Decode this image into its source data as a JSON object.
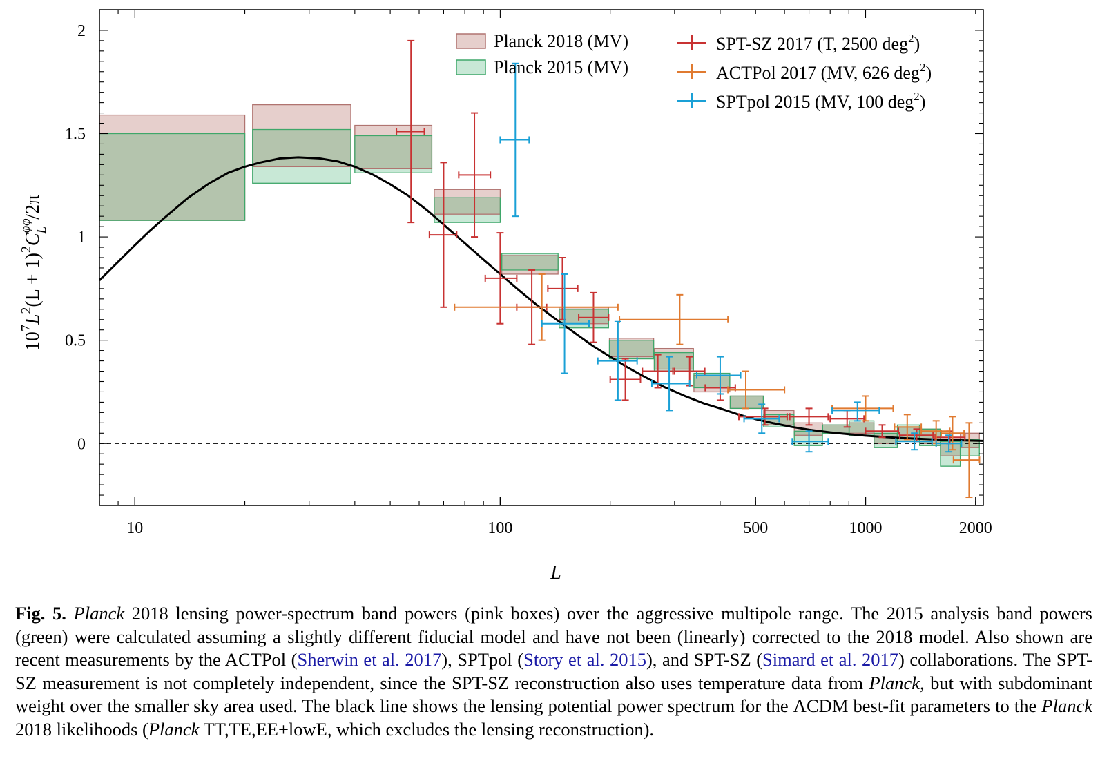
{
  "chart_data": {
    "type": "scatter",
    "xlabel": "L",
    "ylabel": "10^7 L^2(L+1)^2 C_L^{φφ} / 2π",
    "xscale": "log",
    "xlim": [
      8,
      2100
    ],
    "ylim": [
      -0.3,
      2.1
    ],
    "xticks": [
      {
        "value": 10,
        "label": "10"
      },
      {
        "value": 100,
        "label": "100"
      },
      {
        "value": 500,
        "label": "500"
      },
      {
        "value": 1000,
        "label": "1000"
      },
      {
        "value": 2000,
        "label": "2000"
      }
    ],
    "yticks": [
      {
        "value": 0,
        "label": "0"
      },
      {
        "value": 0.5,
        "label": "0.5"
      },
      {
        "value": 1,
        "label": "1"
      },
      {
        "value": 1.5,
        "label": "1.5"
      },
      {
        "value": 2,
        "label": "2"
      }
    ],
    "legend_position": "top-right",
    "grid": false,
    "zero_line": {
      "style": "dashed",
      "color": "#000000"
    },
    "colors": {
      "planck2018_fill": "#e6cfcc",
      "planck2018_edge": "#b07470",
      "planck2015_fill": "#c8e8d6",
      "planck2015_edge": "#3fa76a",
      "overlap_fill": "#b4c4ad",
      "sptsz": "#c83232",
      "actpol": "#e07a30",
      "sptpol": "#1aa0d6",
      "model": "#000000"
    },
    "series": [
      {
        "name": "Planck 2018 (MV)",
        "kind": "bandpower_boxes",
        "boxes": [
          {
            "l_min": 8,
            "l_max": 20,
            "low": 1.08,
            "high": 1.59
          },
          {
            "l_min": 21,
            "l_max": 39,
            "low": 1.34,
            "high": 1.64
          },
          {
            "l_min": 40,
            "l_max": 65,
            "low": 1.33,
            "high": 1.54
          },
          {
            "l_min": 66,
            "l_max": 100,
            "low": 1.11,
            "high": 1.23
          },
          {
            "l_min": 101,
            "l_max": 144,
            "low": 0.82,
            "high": 0.91
          },
          {
            "l_min": 145,
            "l_max": 198,
            "low": 0.58,
            "high": 0.66
          },
          {
            "l_min": 199,
            "l_max": 263,
            "low": 0.42,
            "high": 0.51
          },
          {
            "l_min": 264,
            "l_max": 338,
            "low": 0.36,
            "high": 0.46
          },
          {
            "l_min": 339,
            "l_max": 425,
            "low": 0.25,
            "high": 0.33
          },
          {
            "l_min": 426,
            "l_max": 525,
            "low": 0.17,
            "high": 0.23
          },
          {
            "l_min": 526,
            "l_max": 637,
            "low": 0.09,
            "high": 0.16
          },
          {
            "l_min": 638,
            "l_max": 762,
            "low": 0.04,
            "high": 0.1
          },
          {
            "l_min": 763,
            "l_max": 901,
            "low": 0.05,
            "high": 0.09
          },
          {
            "l_min": 902,
            "l_max": 1054,
            "low": 0.05,
            "high": 0.1
          },
          {
            "l_min": 1055,
            "l_max": 1221,
            "low": 0.0,
            "high": 0.05
          },
          {
            "l_min": 1222,
            "l_max": 1404,
            "low": 0.01,
            "high": 0.08
          },
          {
            "l_min": 1405,
            "l_max": 1602,
            "low": 0.0,
            "high": 0.07
          },
          {
            "l_min": 1603,
            "l_max": 1816,
            "low": -0.06,
            "high": 0.03
          },
          {
            "l_min": 1817,
            "l_max": 2048,
            "low": -0.02,
            "high": 0.05
          }
        ]
      },
      {
        "name": "Planck 2015 (MV)",
        "kind": "bandpower_boxes",
        "boxes": [
          {
            "l_min": 8,
            "l_max": 20,
            "low": 1.08,
            "high": 1.5
          },
          {
            "l_min": 21,
            "l_max": 39,
            "low": 1.26,
            "high": 1.52
          },
          {
            "l_min": 40,
            "l_max": 65,
            "low": 1.31,
            "high": 1.49
          },
          {
            "l_min": 66,
            "l_max": 100,
            "low": 1.07,
            "high": 1.19
          },
          {
            "l_min": 101,
            "l_max": 144,
            "low": 0.84,
            "high": 0.92
          },
          {
            "l_min": 145,
            "l_max": 198,
            "low": 0.56,
            "high": 0.65
          },
          {
            "l_min": 199,
            "l_max": 263,
            "low": 0.41,
            "high": 0.5
          },
          {
            "l_min": 264,
            "l_max": 338,
            "low": 0.35,
            "high": 0.44
          },
          {
            "l_min": 339,
            "l_max": 425,
            "low": 0.27,
            "high": 0.34
          },
          {
            "l_min": 426,
            "l_max": 525,
            "low": 0.17,
            "high": 0.23
          },
          {
            "l_min": 526,
            "l_max": 637,
            "low": 0.08,
            "high": 0.14
          },
          {
            "l_min": 638,
            "l_max": 762,
            "low": -0.01,
            "high": 0.06
          },
          {
            "l_min": 763,
            "l_max": 901,
            "low": 0.05,
            "high": 0.09
          },
          {
            "l_min": 902,
            "l_max": 1054,
            "low": 0.04,
            "high": 0.11
          },
          {
            "l_min": 1055,
            "l_max": 1221,
            "low": -0.02,
            "high": 0.05
          },
          {
            "l_min": 1222,
            "l_max": 1404,
            "low": 0.01,
            "high": 0.09
          },
          {
            "l_min": 1405,
            "l_max": 1602,
            "low": -0.01,
            "high": 0.07
          },
          {
            "l_min": 1603,
            "l_max": 1816,
            "low": -0.11,
            "high": 0.01
          },
          {
            "l_min": 1817,
            "l_max": 2048,
            "low": -0.06,
            "high": 0.02
          }
        ]
      },
      {
        "name": "SPT-SZ 2017 (T, 2500 deg²)",
        "kind": "errorbars",
        "points": [
          {
            "x": 57,
            "y": 1.51,
            "x_low": 52,
            "x_high": 62,
            "y_low": 1.07,
            "y_high": 1.95
          },
          {
            "x": 70,
            "y": 1.01,
            "x_low": 64,
            "x_high": 76,
            "y_low": 0.66,
            "y_high": 1.36
          },
          {
            "x": 85,
            "y": 1.3,
            "x_low": 77,
            "x_high": 94,
            "y_low": 1.0,
            "y_high": 1.6
          },
          {
            "x": 100,
            "y": 0.8,
            "x_low": 91,
            "x_high": 111,
            "y_low": 0.58,
            "y_high": 1.02
          },
          {
            "x": 122,
            "y": 0.66,
            "x_low": 111,
            "x_high": 134,
            "y_low": 0.48,
            "y_high": 0.84
          },
          {
            "x": 148,
            "y": 0.75,
            "x_low": 135,
            "x_high": 163,
            "y_low": 0.6,
            "y_high": 0.9
          },
          {
            "x": 180,
            "y": 0.61,
            "x_low": 164,
            "x_high": 198,
            "y_low": 0.49,
            "y_high": 0.73
          },
          {
            "x": 220,
            "y": 0.31,
            "x_low": 200,
            "x_high": 242,
            "y_low": 0.21,
            "y_high": 0.41
          },
          {
            "x": 270,
            "y": 0.35,
            "x_low": 245,
            "x_high": 297,
            "y_low": 0.27,
            "y_high": 0.43
          },
          {
            "x": 330,
            "y": 0.35,
            "x_low": 300,
            "x_high": 363,
            "y_low": 0.28,
            "y_high": 0.42
          },
          {
            "x": 400,
            "y": 0.27,
            "x_low": 364,
            "x_high": 440,
            "y_low": 0.21,
            "y_high": 0.33
          },
          {
            "x": 530,
            "y": 0.13,
            "x_low": 450,
            "x_high": 610,
            "y_low": 0.09,
            "y_high": 0.17
          },
          {
            "x": 700,
            "y": 0.13,
            "x_low": 620,
            "x_high": 790,
            "y_low": 0.09,
            "y_high": 0.17
          },
          {
            "x": 890,
            "y": 0.12,
            "x_low": 800,
            "x_high": 990,
            "y_low": 0.08,
            "y_high": 0.16
          },
          {
            "x": 1110,
            "y": 0.06,
            "x_low": 1000,
            "x_high": 1230,
            "y_low": 0.03,
            "y_high": 0.09
          },
          {
            "x": 1380,
            "y": 0.04,
            "x_low": 1240,
            "x_high": 1530,
            "y_low": 0.01,
            "y_high": 0.07
          },
          {
            "x": 1700,
            "y": 0.03,
            "x_low": 1550,
            "x_high": 1870,
            "y_low": 0.0,
            "y_high": 0.06
          }
        ]
      },
      {
        "name": "ACTPol 2017 (MV, 626 deg²)",
        "kind": "errorbars",
        "points": [
          {
            "x": 130,
            "y": 0.66,
            "x_low": 75,
            "x_high": 210,
            "y_low": 0.5,
            "y_high": 0.82
          },
          {
            "x": 310,
            "y": 0.6,
            "x_low": 212,
            "x_high": 420,
            "y_low": 0.48,
            "y_high": 0.72
          },
          {
            "x": 470,
            "y": 0.26,
            "x_low": 420,
            "x_high": 600,
            "y_low": 0.17,
            "y_high": 0.35
          },
          {
            "x": 1000,
            "y": 0.17,
            "x_low": 810,
            "x_high": 1190,
            "y_low": 0.11,
            "y_high": 0.23
          },
          {
            "x": 1300,
            "y": 0.08,
            "x_low": 1200,
            "x_high": 1420,
            "y_low": 0.02,
            "y_high": 0.14
          },
          {
            "x": 1560,
            "y": 0.06,
            "x_low": 1420,
            "x_high": 1700,
            "y_low": 0.0,
            "y_high": 0.11
          },
          {
            "x": 1730,
            "y": 0.05,
            "x_low": 1610,
            "x_high": 1860,
            "y_low": -0.03,
            "y_high": 0.13
          },
          {
            "x": 1920,
            "y": -0.08,
            "x_low": 1740,
            "x_high": 2050,
            "y_low": -0.26,
            "y_high": 0.1
          }
        ]
      },
      {
        "name": "SPTpol 2015 (MV, 100 deg²)",
        "kind": "errorbars",
        "points": [
          {
            "x": 110,
            "y": 1.47,
            "x_low": 100,
            "x_high": 120,
            "y_low": 1.1,
            "y_high": 1.84
          },
          {
            "x": 150,
            "y": 0.58,
            "x_low": 130,
            "x_high": 175,
            "y_low": 0.34,
            "y_high": 0.82
          },
          {
            "x": 210,
            "y": 0.4,
            "x_low": 185,
            "x_high": 237,
            "y_low": 0.21,
            "y_high": 0.59
          },
          {
            "x": 290,
            "y": 0.29,
            "x_low": 260,
            "x_high": 330,
            "y_low": 0.16,
            "y_high": 0.42
          },
          {
            "x": 400,
            "y": 0.33,
            "x_low": 345,
            "x_high": 455,
            "y_low": 0.24,
            "y_high": 0.42
          },
          {
            "x": 520,
            "y": 0.12,
            "x_low": 465,
            "x_high": 580,
            "y_low": 0.05,
            "y_high": 0.19
          },
          {
            "x": 700,
            "y": 0.01,
            "x_low": 630,
            "x_high": 790,
            "y_low": -0.04,
            "y_high": 0.06
          },
          {
            "x": 950,
            "y": 0.16,
            "x_low": 810,
            "x_high": 1090,
            "y_low": 0.11,
            "y_high": 0.2
          },
          {
            "x": 1360,
            "y": 0.01,
            "x_low": 1210,
            "x_high": 1520,
            "y_low": -0.03,
            "y_high": 0.05
          },
          {
            "x": 1690,
            "y": 0.0,
            "x_low": 1560,
            "x_high": 1830,
            "y_low": -0.04,
            "y_high": 0.04
          }
        ]
      },
      {
        "name": "",
        "kind": "line",
        "x": [
          8,
          9,
          10,
          11,
          12,
          14,
          16,
          18,
          20,
          22,
          25,
          28,
          32,
          36,
          40,
          45,
          50,
          56,
          63,
          70,
          80,
          90,
          100,
          112,
          125,
          140,
          160,
          180,
          200,
          225,
          250,
          280,
          320,
          360,
          400,
          450,
          500,
          560,
          630,
          700,
          800,
          900,
          1000,
          1120,
          1250,
          1400,
          1600,
          1800,
          2000,
          2100
        ],
        "y": [
          0.79,
          0.88,
          0.96,
          1.03,
          1.09,
          1.19,
          1.26,
          1.31,
          1.34,
          1.36,
          1.38,
          1.385,
          1.38,
          1.365,
          1.34,
          1.3,
          1.255,
          1.2,
          1.13,
          1.06,
          0.97,
          0.89,
          0.82,
          0.745,
          0.675,
          0.61,
          0.535,
          0.47,
          0.42,
          0.365,
          0.32,
          0.275,
          0.23,
          0.195,
          0.17,
          0.14,
          0.118,
          0.098,
          0.08,
          0.067,
          0.054,
          0.045,
          0.038,
          0.032,
          0.027,
          0.023,
          0.019,
          0.016,
          0.014,
          0.013
        ]
      }
    ]
  },
  "legend": {
    "planck2018": "Planck 2018 (MV)",
    "planck2015": "Planck 2015 (MV)",
    "sptsz_main": "SPT-SZ 2017 (T, 2500 deg",
    "sptsz_close": ")",
    "actpol_main": "ACTPol 2017 (MV, 626 deg",
    "actpol_close": ")",
    "sptpol_main": "SPTpol 2015 (MV, 100 deg",
    "sptpol_close": ")",
    "sup2": "2"
  },
  "axis_titles": {
    "x": "L",
    "y_main": "10",
    "y_sup7": "7",
    "y_L": "L",
    "y_sup2a": "2",
    "y_paren": "(L + 1)",
    "y_sup2b": "2",
    "y_C": "C",
    "y_sup_phi": "φφ",
    "y_sub_L": "L",
    "y_tail": "/2π"
  },
  "caption": {
    "label": "Fig. 5.",
    "s1": "Planck",
    "s2": " 2018 lensing power-spectrum band powers (pink boxes) over the aggressive multipole range. The 2015 analysis band powers (green) were calculated assuming a slightly different fiducial model and have not been (linearly) corrected to the 2018 model. Also shown are recent measurements by the ACTPol (",
    "c1": "Sherwin et al. 2017",
    "s3": "), SPTpol (",
    "c2": "Story et al. 2015",
    "s4": "), and SPT-SZ (",
    "c3": "Simard et al. 2017",
    "s5": ") collaborations. The SPT-SZ measurement is not completely independent, since the SPT-SZ reconstruction also uses temperature data from ",
    "s6": "Planck",
    "s7": ", but with subdominant weight over the smaller sky area used. The black line shows the lensing potential power spectrum for the ΛCDM best-fit parameters to the ",
    "s8": "Planck",
    "s9": " 2018 likelihoods (",
    "s10": "Planck",
    "s11": " TT,TE,EE+lowE, which excludes the lensing reconstruction)."
  }
}
